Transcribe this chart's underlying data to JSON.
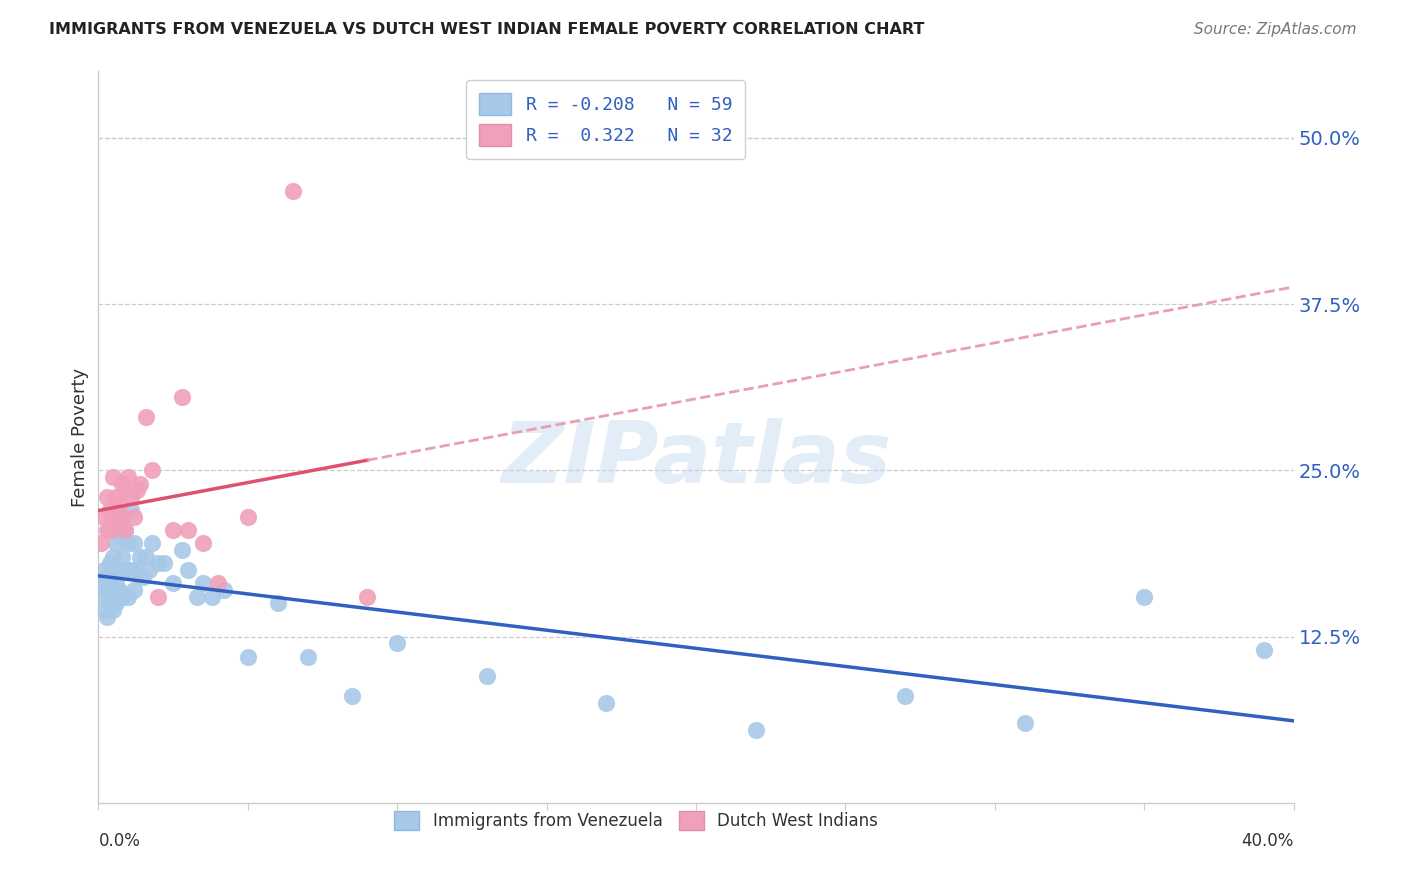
{
  "title": "IMMIGRANTS FROM VENEZUELA VS DUTCH WEST INDIAN FEMALE POVERTY CORRELATION CHART",
  "source": "Source: ZipAtlas.com",
  "ylabel": "Female Poverty",
  "ytick_vals": [
    0.125,
    0.25,
    0.375,
    0.5
  ],
  "ytick_labels": [
    "12.5%",
    "25.0%",
    "37.5%",
    "50.0%"
  ],
  "xlim": [
    0.0,
    0.4
  ],
  "ylim": [
    0.0,
    0.55
  ],
  "blue_color": "#a8c8e8",
  "pink_color": "#f0a0b8",
  "blue_line_color": "#3060c0",
  "pink_line_color": "#e05070",
  "pink_dash_color": "#e8a0b0",
  "watermark": "ZIPatlas",
  "legend_label_blue": "R = -0.208   N = 59",
  "legend_label_pink": "R =  0.322   N = 32",
  "bottom_label_blue": "Immigrants from Venezuela",
  "bottom_label_pink": "Dutch West Indians",
  "blue_x": [
    0.001,
    0.002,
    0.002,
    0.002,
    0.003,
    0.003,
    0.003,
    0.004,
    0.004,
    0.004,
    0.004,
    0.005,
    0.005,
    0.005,
    0.005,
    0.006,
    0.006,
    0.006,
    0.007,
    0.007,
    0.007,
    0.008,
    0.008,
    0.008,
    0.009,
    0.009,
    0.01,
    0.01,
    0.011,
    0.011,
    0.012,
    0.012,
    0.013,
    0.014,
    0.015,
    0.016,
    0.017,
    0.018,
    0.02,
    0.022,
    0.025,
    0.028,
    0.03,
    0.033,
    0.035,
    0.038,
    0.042,
    0.05,
    0.06,
    0.07,
    0.085,
    0.1,
    0.13,
    0.17,
    0.22,
    0.27,
    0.31,
    0.35,
    0.39
  ],
  "blue_y": [
    0.165,
    0.145,
    0.155,
    0.175,
    0.14,
    0.16,
    0.17,
    0.15,
    0.165,
    0.18,
    0.155,
    0.145,
    0.16,
    0.175,
    0.185,
    0.15,
    0.165,
    0.195,
    0.16,
    0.175,
    0.21,
    0.155,
    0.185,
    0.2,
    0.175,
    0.205,
    0.155,
    0.195,
    0.175,
    0.22,
    0.16,
    0.195,
    0.175,
    0.185,
    0.17,
    0.185,
    0.175,
    0.195,
    0.18,
    0.18,
    0.165,
    0.19,
    0.175,
    0.155,
    0.165,
    0.155,
    0.16,
    0.11,
    0.15,
    0.11,
    0.08,
    0.12,
    0.095,
    0.075,
    0.055,
    0.08,
    0.06,
    0.155,
    0.115
  ],
  "pink_x": [
    0.001,
    0.002,
    0.003,
    0.003,
    0.004,
    0.004,
    0.005,
    0.005,
    0.006,
    0.006,
    0.007,
    0.007,
    0.008,
    0.008,
    0.009,
    0.009,
    0.01,
    0.011,
    0.012,
    0.013,
    0.014,
    0.016,
    0.018,
    0.02,
    0.025,
    0.028,
    0.03,
    0.035,
    0.04,
    0.05,
    0.065,
    0.09
  ],
  "pink_y": [
    0.195,
    0.215,
    0.205,
    0.23,
    0.205,
    0.22,
    0.215,
    0.245,
    0.215,
    0.23,
    0.21,
    0.225,
    0.215,
    0.24,
    0.205,
    0.235,
    0.245,
    0.23,
    0.215,
    0.235,
    0.24,
    0.29,
    0.25,
    0.155,
    0.205,
    0.305,
    0.205,
    0.195,
    0.165,
    0.215,
    0.46,
    0.155
  ]
}
